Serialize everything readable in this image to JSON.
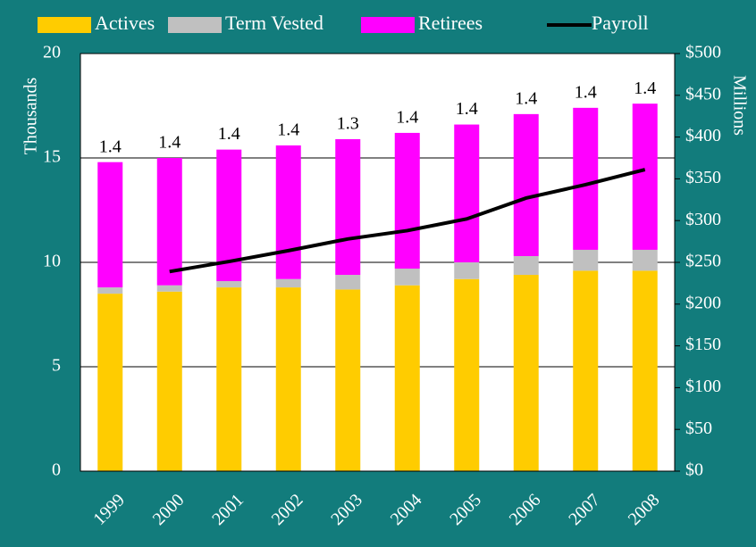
{
  "chart_data": {
    "type": "bar",
    "stacked": true,
    "y_label": "Thousands",
    "y2_label": "Millions",
    "categories": [
      "1999",
      "2000",
      "2001",
      "2002",
      "2003",
      "2004",
      "2005",
      "2006",
      "2007",
      "2008"
    ],
    "series": [
      {
        "name": "Actives",
        "color": "#ffcc00",
        "values": [
          8.5,
          8.6,
          8.8,
          8.8,
          8.7,
          8.9,
          9.2,
          9.4,
          9.6,
          9.6
        ]
      },
      {
        "name": "Term Vested",
        "color": "#c0c0c0",
        "values": [
          0.3,
          0.3,
          0.3,
          0.4,
          0.7,
          0.8,
          0.8,
          0.9,
          1.0,
          1.0
        ]
      },
      {
        "name": "Retirees",
        "color": "#ff00ff",
        "values": [
          6.0,
          6.1,
          6.3,
          6.4,
          6.5,
          6.5,
          6.6,
          6.8,
          6.8,
          7.0
        ]
      },
      {
        "name": "Payroll",
        "type": "line",
        "axis": "y2",
        "color": "#000000",
        "values": [
          null,
          239,
          251,
          264,
          278,
          288,
          302,
          327,
          343,
          361
        ]
      }
    ],
    "ratio_labels": [
      1.4,
      1.4,
      1.4,
      1.4,
      1.3,
      1.4,
      1.4,
      1.4,
      1.4,
      1.4
    ],
    "ylim": [
      0,
      20
    ],
    "yticks": [
      0,
      5,
      10,
      15,
      20
    ],
    "y2lim": [
      0,
      500
    ],
    "y2ticks": [
      {
        "value": 0,
        "label": "$0"
      },
      {
        "value": 50,
        "label": "$50"
      },
      {
        "value": 100,
        "label": "$100"
      },
      {
        "value": 150,
        "label": "$150"
      },
      {
        "value": 200,
        "label": "$200"
      },
      {
        "value": 250,
        "label": "$250"
      },
      {
        "value": 300,
        "label": "$300"
      },
      {
        "value": 350,
        "label": "$350"
      },
      {
        "value": 400,
        "label": "$400"
      },
      {
        "value": 450,
        "label": "$450"
      },
      {
        "value": 500,
        "label": "$500"
      }
    ],
    "grid": true
  }
}
